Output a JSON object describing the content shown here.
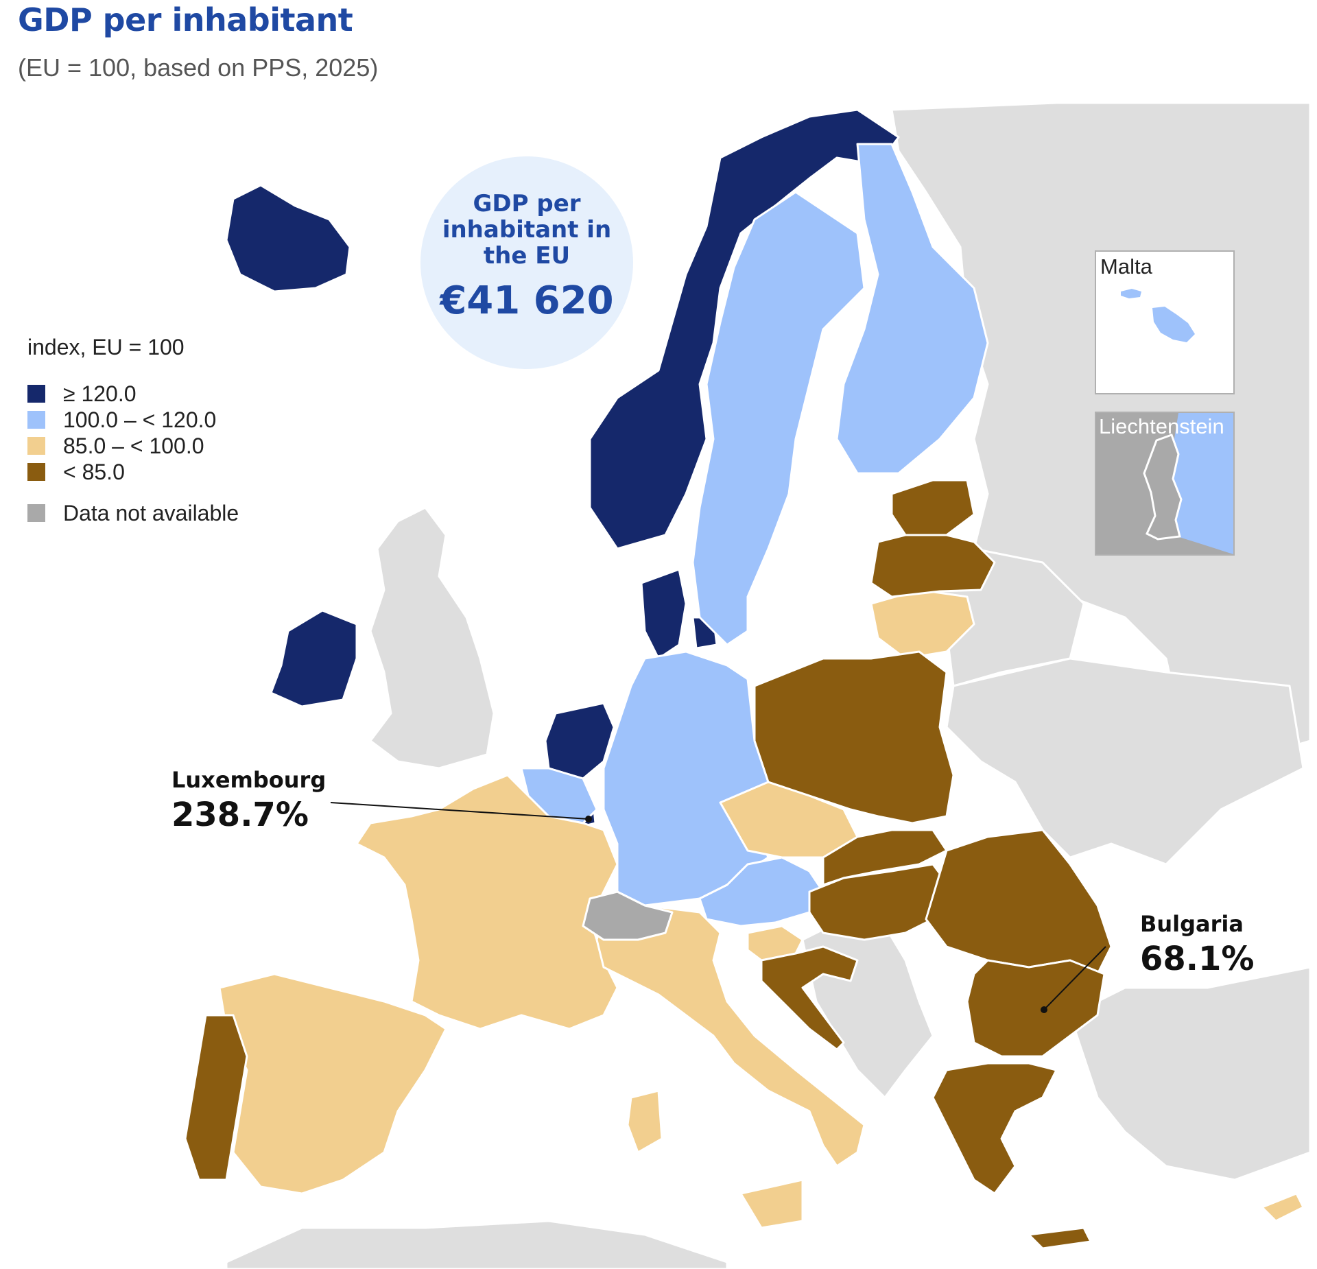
{
  "title": "GDP per inhabitant",
  "subtitle": "(EU = 100, based on PPS, 2025)",
  "highlight": {
    "text": "GDP per inhabitant in the EU",
    "value": "€41 620"
  },
  "legend": {
    "title": "index, EU = 100",
    "items": [
      {
        "label": "≥ 120.0",
        "color": "#15286b"
      },
      {
        "label": "100.0 – < 120.0",
        "color": "#9ec2fb"
      },
      {
        "label": "85.0 – < 100.0",
        "color": "#f2cf8f"
      },
      {
        "label": "< 85.0",
        "color": "#8a5c10"
      },
      {
        "label": "Data not available",
        "color": "#a9a9a9"
      }
    ]
  },
  "insets": {
    "malta": "Malta",
    "liechtenstein": "Liechtenstein"
  },
  "callouts": {
    "luxembourg": {
      "name": "Luxembourg",
      "value": "238.7%"
    },
    "bulgaria": {
      "name": "Bulgaria",
      "value": "68.1%"
    }
  },
  "colors": {
    "tier1": "#15286b",
    "tier2": "#9ec2fb",
    "tier3": "#f2cf8f",
    "tier4": "#8a5c10",
    "not_available": "#a9a9a9",
    "non_covered": "#dedede",
    "title": "#1f49a3"
  }
}
